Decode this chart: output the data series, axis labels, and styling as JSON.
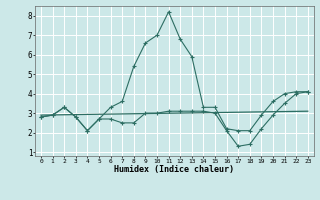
{
  "xlabel": "Humidex (Indice chaleur)",
  "bg_color": "#cce8e8",
  "grid_color": "#ffffff",
  "line_color": "#2d6e63",
  "xlim": [
    -0.5,
    23.5
  ],
  "ylim": [
    0.8,
    8.5
  ],
  "yticks": [
    1,
    2,
    3,
    4,
    5,
    6,
    7,
    8
  ],
  "xticks": [
    0,
    1,
    2,
    3,
    4,
    5,
    6,
    7,
    8,
    9,
    10,
    11,
    12,
    13,
    14,
    15,
    16,
    17,
    18,
    19,
    20,
    21,
    22,
    23
  ],
  "line1_x": [
    0,
    1,
    2,
    3,
    4,
    5,
    6,
    7,
    8,
    9,
    10,
    11,
    12,
    13,
    14,
    15,
    16,
    17,
    18,
    19,
    20,
    21,
    22,
    23
  ],
  "line1_y": [
    2.8,
    2.9,
    3.3,
    2.8,
    2.1,
    2.7,
    3.3,
    3.6,
    5.4,
    6.6,
    7.0,
    8.2,
    6.8,
    5.9,
    3.3,
    3.3,
    2.2,
    2.1,
    2.1,
    2.9,
    3.6,
    4.0,
    4.1,
    4.1
  ],
  "line2_x": [
    0,
    23
  ],
  "line2_y": [
    2.9,
    3.1
  ],
  "line3_x": [
    0,
    1,
    2,
    3,
    4,
    5,
    6,
    7,
    8,
    9,
    10,
    11,
    12,
    13,
    14,
    15,
    16,
    17,
    18,
    19,
    20,
    21,
    22,
    23
  ],
  "line3_y": [
    2.8,
    2.9,
    3.3,
    2.8,
    2.1,
    2.7,
    2.7,
    2.5,
    2.5,
    3.0,
    3.0,
    3.1,
    3.1,
    3.1,
    3.1,
    3.0,
    2.1,
    1.3,
    1.4,
    2.2,
    2.9,
    3.5,
    4.0,
    4.1
  ]
}
